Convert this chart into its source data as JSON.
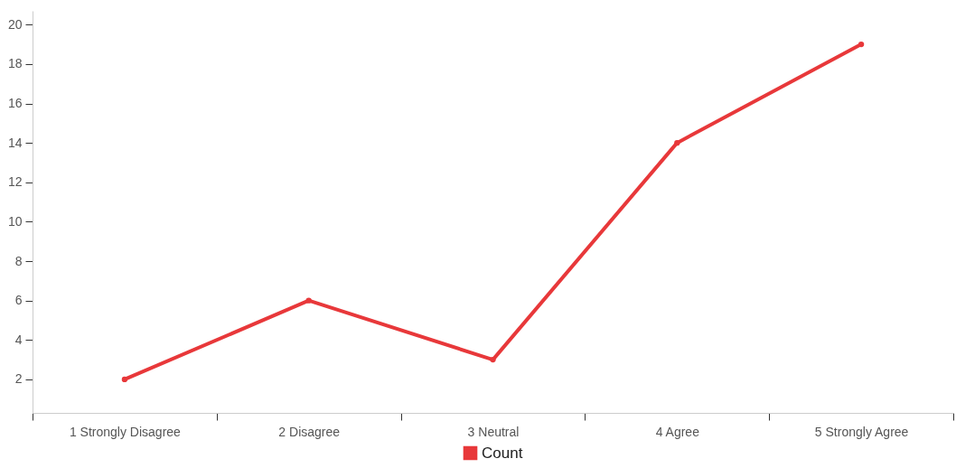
{
  "chart_data": {
    "type": "line",
    "categories": [
      "1 Strongly Disagree",
      "2 Disagree",
      "3 Neutral",
      "4 Agree",
      "5 Strongly Agree"
    ],
    "series": [
      {
        "name": "Count",
        "color": "#e8383a",
        "values": [
          2,
          6,
          3,
          14,
          19
        ]
      }
    ],
    "ylim": [
      0.3,
      20.7
    ],
    "yticks": [
      2,
      4,
      6,
      8,
      10,
      12,
      14,
      16,
      18,
      20
    ],
    "grid": false,
    "legend": "bottom",
    "marker": "circle",
    "line_style": "solid"
  }
}
